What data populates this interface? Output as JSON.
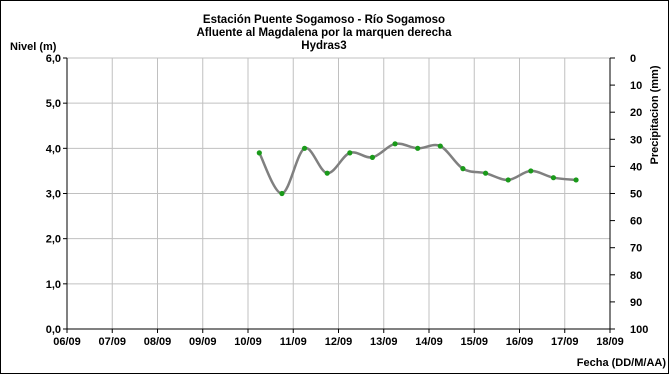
{
  "chart_data": {
    "type": "line",
    "title": [
      "Estación Puente Sogamoso  - Río Sogamoso",
      "Afluente al Magdalena por la marquen derecha",
      "Hydras3"
    ],
    "ylabel_left": "Nivel (m)",
    "ylabel_right": "Precipitacion (mm)",
    "xlabel": "Fecha (DD/M/AA)",
    "x_ticks": [
      "06/09",
      "07/09",
      "08/09",
      "09/09",
      "10/09",
      "11/09",
      "12/09",
      "13/09",
      "14/09",
      "15/09",
      "16/09",
      "17/09",
      "18/09"
    ],
    "y_left_ticks": [
      "0,0",
      "1,0",
      "2,0",
      "3,0",
      "4,0",
      "5,0",
      "6,0"
    ],
    "y_right_ticks": [
      "0",
      "10",
      "20",
      "30",
      "40",
      "50",
      "60",
      "70",
      "80",
      "90",
      "100"
    ],
    "ylim_left": [
      0,
      6
    ],
    "ylim_right_inverted": [
      0,
      100
    ],
    "grid": true,
    "series": [
      {
        "x": [
          10.25,
          10.75,
          11.25,
          11.75,
          12.25,
          12.75,
          13.25,
          13.75,
          14.25,
          14.75,
          15.25,
          15.75,
          16.25,
          16.75,
          17.25
        ],
        "values": [
          3.9,
          3.0,
          4.0,
          3.45,
          3.9,
          3.8,
          4.1,
          4.0,
          4.05,
          3.55,
          3.45,
          3.3,
          3.5,
          3.35,
          3.3
        ]
      }
    ],
    "colors": {
      "line": "#808080",
      "marker": "#1a9a1a",
      "grid": "#c0c0c0"
    }
  }
}
